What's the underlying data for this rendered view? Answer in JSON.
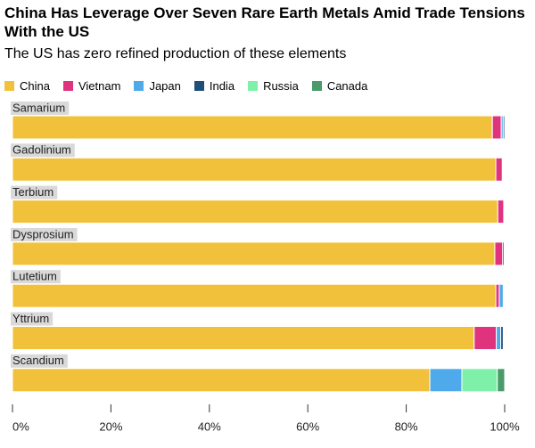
{
  "chart_data": {
    "type": "stacked-bar-horizontal",
    "title": "China Has Leverage Over Seven Rare Earth Metals Amid Trade Tensions With the US",
    "subtitle": "The US has zero refined production of these elements",
    "categories": [
      "Samarium",
      "Gadolinium",
      "Terbium",
      "Dysprosium",
      "Lutetium",
      "Yttrium",
      "Scandium"
    ],
    "series": [
      {
        "name": "China",
        "color": "#f2c13b",
        "values": [
          97.5,
          98.2,
          98.6,
          98.0,
          98.2,
          93.8,
          84.8
        ]
      },
      {
        "name": "Vietnam",
        "color": "#e0337e",
        "values": [
          1.8,
          1.3,
          1.2,
          1.6,
          0.7,
          4.5,
          0
        ]
      },
      {
        "name": "Japan",
        "color": "#4eaaea",
        "values": [
          0.4,
          0,
          0,
          0,
          0.8,
          0.9,
          6.5
        ]
      },
      {
        "name": "India",
        "color": "#1f4e79",
        "values": [
          0.3,
          0,
          0,
          0.3,
          0,
          0.5,
          0
        ]
      },
      {
        "name": "Russia",
        "color": "#7ff0a8",
        "values": [
          0,
          0,
          0,
          0,
          0,
          0,
          7.2
        ]
      },
      {
        "name": "Canada",
        "color": "#4a9a6a",
        "values": [
          0,
          0,
          0,
          0,
          0,
          0,
          1.5
        ]
      }
    ],
    "xlim": [
      0,
      100
    ],
    "xticks": [
      {
        "value": 0,
        "label": "0%"
      },
      {
        "value": 20,
        "label": "20%"
      },
      {
        "value": 40,
        "label": "40%"
      },
      {
        "value": 60,
        "label": "60%"
      },
      {
        "value": 80,
        "label": "80%"
      },
      {
        "value": 100,
        "label": "100%"
      }
    ]
  }
}
